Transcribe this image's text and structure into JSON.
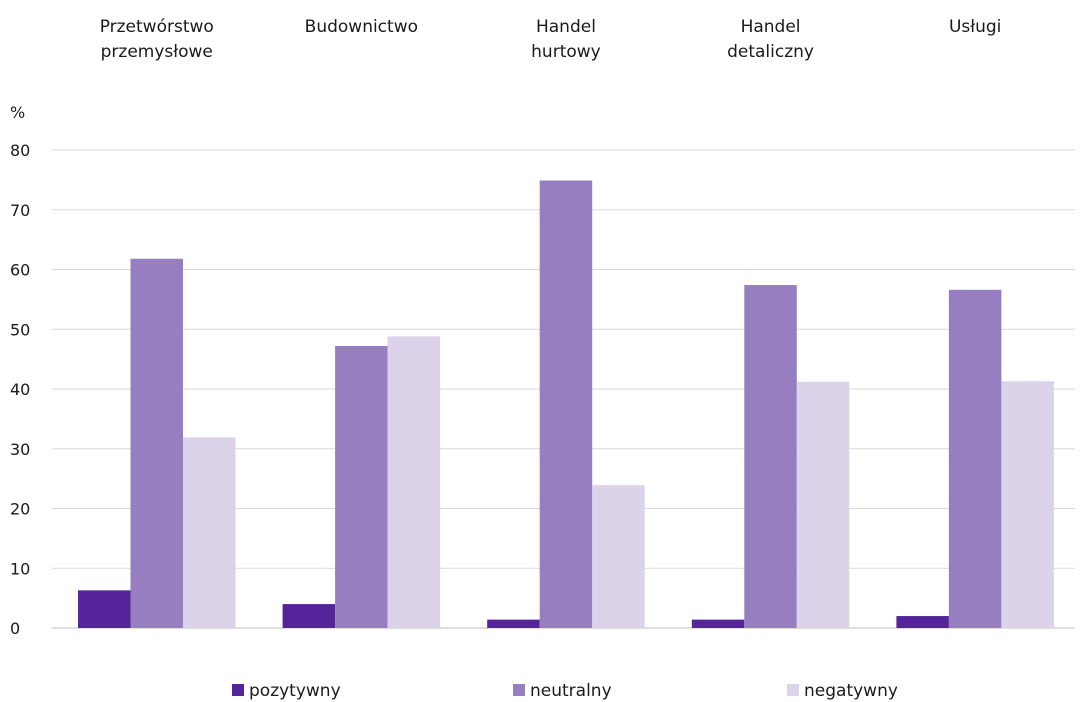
{
  "chart_data": {
    "type": "bar",
    "ylabel": "%",
    "ylim": [
      0,
      80
    ],
    "yticks": [
      0,
      10,
      20,
      30,
      40,
      50,
      60,
      70,
      80
    ],
    "grid": true,
    "legend_position": "bottom",
    "categories": [
      [
        "Przetwórstwo",
        "przemysłowe"
      ],
      [
        "Budownictwo"
      ],
      [
        "Handel",
        "hurtowy"
      ],
      [
        "Handel",
        "detaliczny"
      ],
      [
        "Usługi"
      ]
    ],
    "series": [
      {
        "name": "pozytywny",
        "color": "#55249a",
        "values": [
          6.3,
          4.0,
          1.4,
          1.4,
          2.0
        ]
      },
      {
        "name": "neutralny",
        "color": "#967ec1",
        "values": [
          61.8,
          47.2,
          74.9,
          57.4,
          56.6
        ]
      },
      {
        "name": "negatywny",
        "color": "#dcd3ea",
        "values": [
          31.9,
          48.8,
          23.9,
          41.2,
          41.3
        ]
      }
    ]
  }
}
